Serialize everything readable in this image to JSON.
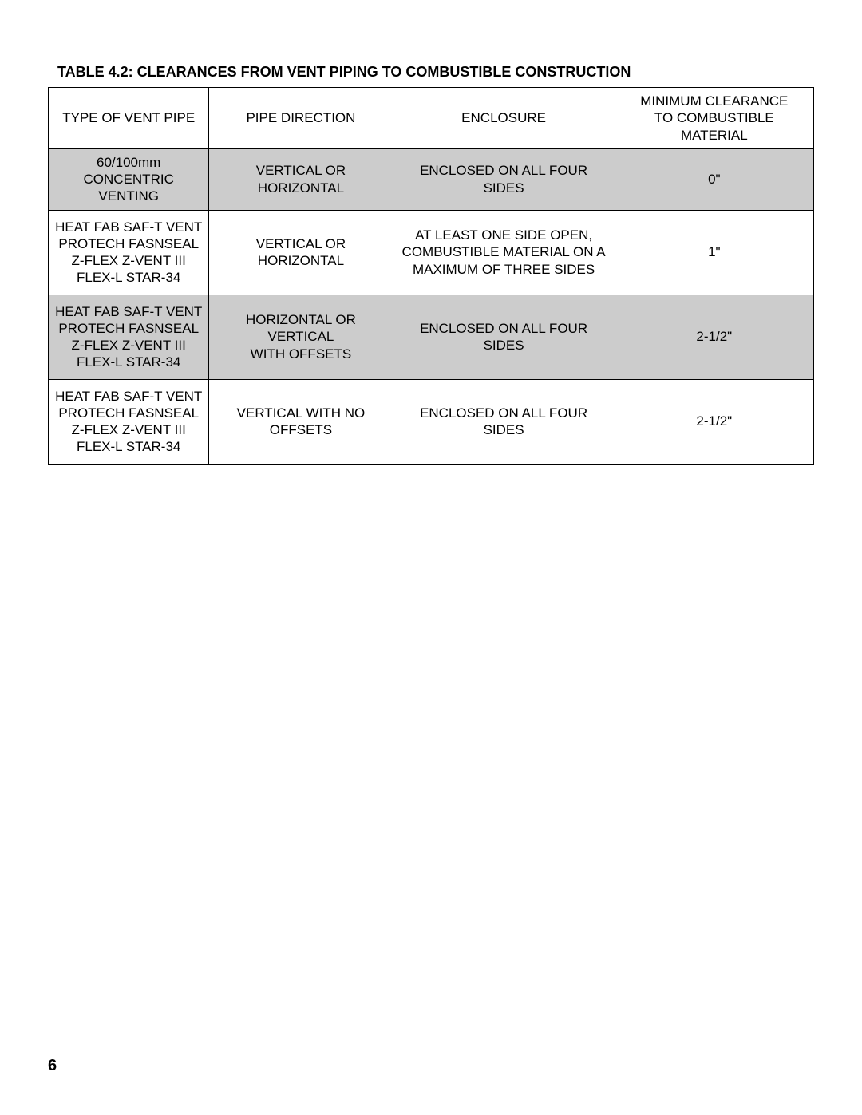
{
  "title": "TABLE 4.2: CLEARANCES FROM VENT PIPING TO COMBUSTIBLE CONSTRUCTION",
  "page_number": "6",
  "columns": [
    "TYPE OF VENT PIPE",
    "PIPE DIRECTION",
    "ENCLOSURE",
    "MINIMUM CLEARANCE TO COMBUSTIBLE MATERIAL"
  ],
  "rows": [
    {
      "shaded": true,
      "type_lines": [
        "60/100mm",
        "CONCENTRIC VENTING"
      ],
      "direction_lines": [
        "VERTICAL OR",
        "HORIZONTAL"
      ],
      "enclosure_lines": [
        "ENCLOSED ON ALL FOUR SIDES"
      ],
      "clearance": "0\""
    },
    {
      "shaded": false,
      "type_lines": [
        "HEAT FAB SAF-T VENT",
        "PROTECH FASNSEAL",
        "Z-FLEX Z-VENT III",
        "FLEX-L STAR-34"
      ],
      "direction_lines": [
        "VERTICAL OR",
        "HORIZONTAL"
      ],
      "enclosure_lines": [
        "AT LEAST ONE SIDE OPEN,",
        "COMBUSTIBLE MATERIAL ON A",
        "MAXIMUM OF THREE SIDES"
      ],
      "clearance": "1\""
    },
    {
      "shaded": true,
      "type_lines": [
        "HEAT FAB SAF-T VENT",
        "PROTECH FASNSEAL",
        "Z-FLEX Z-VENT III",
        "FLEX-L STAR-34"
      ],
      "direction_lines": [
        "HORIZONTAL OR VERTICAL",
        "WITH OFFSETS"
      ],
      "enclosure_lines": [
        "ENCLOSED ON ALL FOUR SIDES"
      ],
      "clearance": "2-1/2\""
    },
    {
      "shaded": false,
      "type_lines": [
        "HEAT FAB SAF-T VENT",
        "PROTECH FASNSEAL",
        "Z-FLEX Z-VENT III",
        "FLEX-L STAR-34"
      ],
      "direction_lines": [
        "VERTICAL WITH NO OFFSETS"
      ],
      "enclosure_lines": [
        "ENCLOSED ON ALL FOUR SIDES"
      ],
      "clearance": "2-1/2\""
    }
  ],
  "colors": {
    "shaded_bg": "#cccccc",
    "border": "#000000",
    "text": "#000000",
    "page_bg": "#ffffff"
  },
  "fonts": {
    "title_size_pt": 13,
    "cell_size_pt": 12,
    "page_num_size_pt": 15,
    "family": "Arial"
  }
}
